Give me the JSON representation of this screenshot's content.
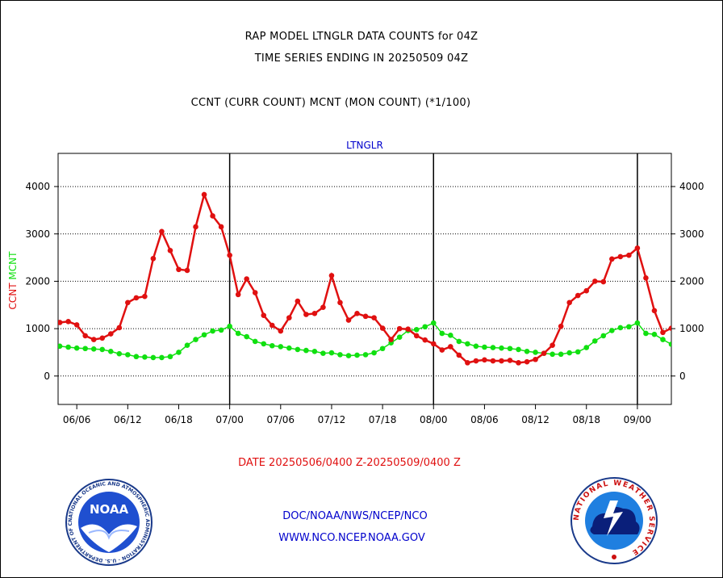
{
  "header": {
    "line1": "RAP MODEL LTNGLR DATA COUNTS for 04Z",
    "line2": "TIME SERIES ENDING IN 20250509 04Z",
    "line3": "CCNT (CURR COUNT) MCNT (MON COUNT) (*1/100)"
  },
  "footer": {
    "date_range": "DATE 20250506/0400 Z-20250509/0400 Z",
    "org": "DOC/NOAA/NWS/NCEP/NCO",
    "url": "WWW.NCO.NCEP.NOAA.GOV"
  },
  "logos": {
    "left": "NOAA",
    "left_ring": "NATIONAL OCEANIC AND ATMOSPHERIC ADMINISTRATION · U.S. DEPARTMENT OF COMMERCE",
    "right_ring": "NATIONAL WEATHER SERVICE"
  },
  "colors": {
    "ccnt": "#e01010",
    "mcnt": "#10e010",
    "title": "#0000cc",
    "date": "#e01010"
  },
  "chart_data": {
    "type": "line",
    "title": "LTNGLR",
    "ylabel_parts": [
      {
        "text": "CCNT",
        "color": "#e01010"
      },
      {
        "text": "MCNT",
        "color": "#10e010"
      }
    ],
    "x_ticks": [
      "06/06",
      "06/12",
      "06/18",
      "07/00",
      "07/06",
      "07/12",
      "07/18",
      "08/00",
      "08/06",
      "08/12",
      "08/18",
      "09/00"
    ],
    "x_tick_values": [
      2,
      8,
      14,
      20,
      26,
      32,
      38,
      44,
      50,
      56,
      62,
      68
    ],
    "day_boundaries": [
      20,
      44,
      68
    ],
    "xlim": [
      -0.2,
      72
    ],
    "ylim": [
      -600,
      4700
    ],
    "y_ticks": [
      0,
      1000,
      2000,
      3000,
      4000
    ],
    "grid": true,
    "x": [
      0,
      1,
      2,
      3,
      4,
      5,
      6,
      7,
      8,
      9,
      10,
      11,
      12,
      13,
      14,
      15,
      16,
      17,
      18,
      19,
      20,
      21,
      22,
      23,
      24,
      25,
      26,
      27,
      28,
      29,
      30,
      31,
      32,
      33,
      34,
      35,
      36,
      37,
      38,
      39,
      40,
      41,
      42,
      43,
      44,
      45,
      46,
      47,
      48,
      49,
      50,
      51,
      52,
      53,
      54,
      55,
      56,
      57,
      58,
      59,
      60,
      61,
      62,
      63,
      64,
      65,
      66,
      67,
      68,
      69,
      70,
      71,
      72
    ],
    "series": [
      {
        "name": "CCNT",
        "color": "#e01010",
        "values": [
          1130,
          1150,
          1080,
          850,
          770,
          800,
          890,
          1020,
          1550,
          1650,
          1680,
          2480,
          3050,
          2650,
          2250,
          2230,
          3150,
          3830,
          3380,
          3150,
          2550,
          1720,
          2050,
          1760,
          1280,
          1070,
          950,
          1230,
          1580,
          1300,
          1320,
          1450,
          2120,
          1550,
          1180,
          1320,
          1260,
          1230,
          1010,
          770,
          1000,
          990,
          850,
          760,
          680,
          550,
          620,
          440,
          280,
          320,
          340,
          320,
          320,
          330,
          280,
          300,
          350,
          480,
          650,
          1050,
          1550,
          1700,
          1800,
          2000,
          1990,
          2470,
          2520,
          2550,
          2700,
          2070,
          1380,
          920,
          1010
        ]
      },
      {
        "name": "MCNT",
        "color": "#10e010",
        "values": [
          630,
          610,
          590,
          580,
          570,
          560,
          520,
          470,
          450,
          410,
          400,
          390,
          390,
          410,
          500,
          650,
          770,
          870,
          950,
          970,
          1050,
          900,
          830,
          730,
          680,
          640,
          620,
          590,
          560,
          540,
          520,
          480,
          490,
          450,
          430,
          440,
          450,
          490,
          580,
          700,
          820,
          960,
          980,
          1040,
          1120,
          900,
          860,
          730,
          680,
          630,
          610,
          600,
          590,
          580,
          560,
          520,
          500,
          480,
          460,
          460,
          490,
          510,
          600,
          740,
          850,
          960,
          1020,
          1040,
          1120,
          900,
          880,
          770,
          670
        ]
      }
    ]
  }
}
